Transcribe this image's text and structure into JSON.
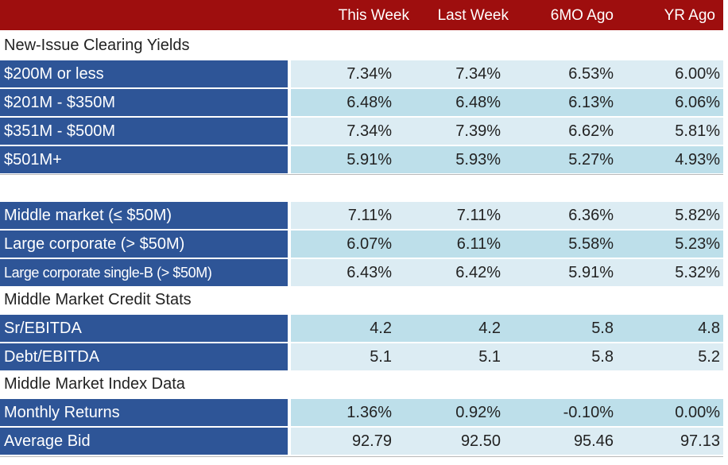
{
  "header": {
    "columns": [
      "This Week",
      "Last Week",
      "6MO Ago",
      "YR Ago"
    ]
  },
  "sections": {
    "new_issue": "New-Issue Clearing Yields",
    "credit_stats": "Middle Market Credit Stats",
    "index_data": "Middle Market Index Data"
  },
  "rows": [
    {
      "label": "$200M or less",
      "values": [
        "7.34%",
        "7.34%",
        "6.53%",
        "6.00%"
      ]
    },
    {
      "label": "$201M - $350M",
      "values": [
        "6.48%",
        "6.48%",
        "6.13%",
        "6.06%"
      ]
    },
    {
      "label": "$351M - $500M",
      "values": [
        "7.34%",
        "7.39%",
        "6.62%",
        "5.81%"
      ]
    },
    {
      "label": "$501M+",
      "values": [
        "5.91%",
        "5.93%",
        "5.27%",
        "4.93%"
      ]
    },
    {
      "label": "Middle market (≤ $50M)",
      "values": [
        "7.11%",
        "7.11%",
        "6.36%",
        "5.82%"
      ]
    },
    {
      "label": "Large corporate (> $50M)",
      "values": [
        "6.07%",
        "6.11%",
        "5.58%",
        "5.23%"
      ]
    },
    {
      "label": "Large corporate single-B (> $50M)",
      "values": [
        "6.43%",
        "6.42%",
        "5.91%",
        "5.32%"
      ]
    },
    {
      "label": "Sr/EBITDA",
      "values": [
        "4.2",
        "4.2",
        "5.8",
        "4.8"
      ]
    },
    {
      "label": "Debt/EBITDA",
      "values": [
        "5.1",
        "5.1",
        "5.8",
        "5.2"
      ]
    },
    {
      "label": "Monthly Returns",
      "values": [
        "1.36%",
        "0.92%",
        "-0.10%",
        "0.00%"
      ]
    },
    {
      "label": "Average Bid",
      "values": [
        "92.79",
        "92.50",
        "95.46",
        "97.13"
      ]
    }
  ],
  "colors": {
    "header_bg": "#9e0e0e",
    "label_bg": "#2e5597",
    "value_bg_light": "#dcecf3",
    "value_bg_mid": "#bddfea"
  }
}
